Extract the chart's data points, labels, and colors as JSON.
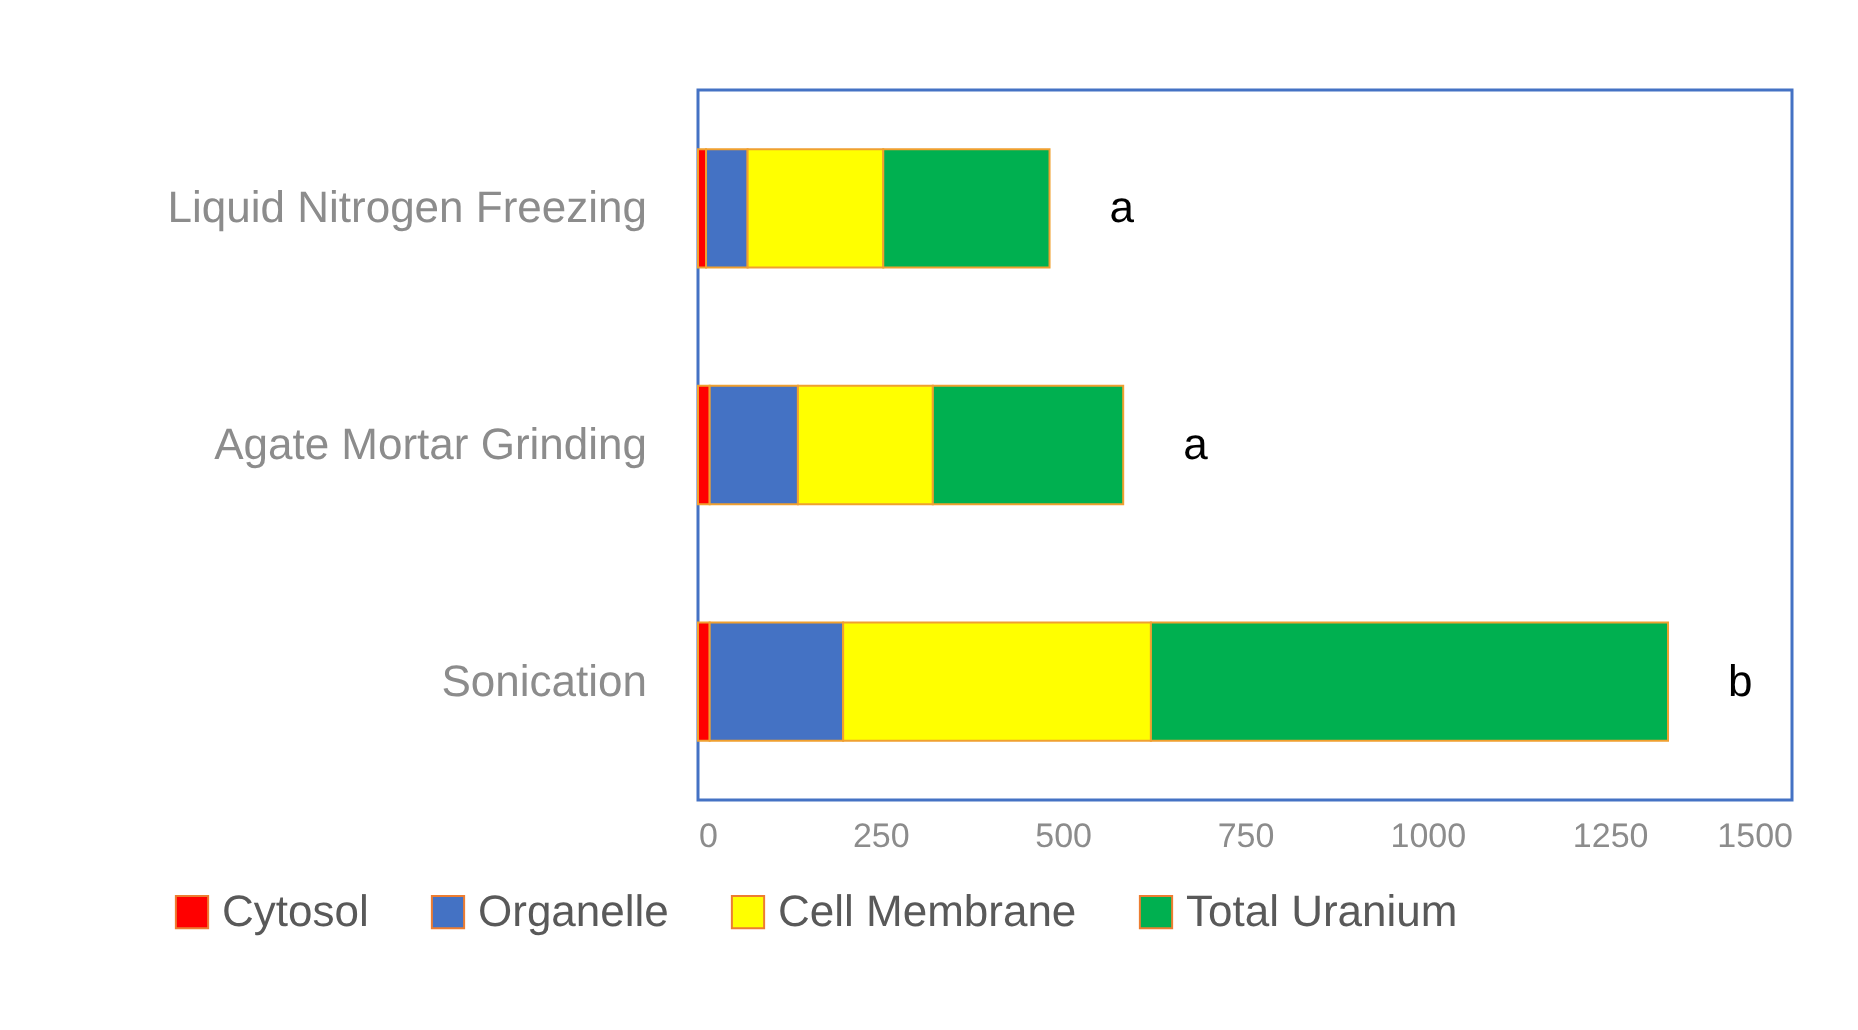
{
  "chart_data": {
    "type": "bar",
    "orientation": "horizontal",
    "stacked": true,
    "categories": [
      "Liquid Nitrogen Freezing",
      "Agate Mortar Grinding",
      "Sonication"
    ],
    "series": [
      {
        "name": "Cytosol",
        "color": "#ff0000",
        "values": [
          11,
          16,
          16
        ]
      },
      {
        "name": "Organelle",
        "color": "#4472c4",
        "values": [
          57,
          121,
          183
        ]
      },
      {
        "name": "Cell Membrane",
        "color": "#ffff00",
        "values": [
          186,
          185,
          422
        ]
      },
      {
        "name": "Total Uranium",
        "color": "#00b050",
        "values": [
          228,
          261,
          709
        ]
      }
    ],
    "xlim": [
      0,
      1500
    ],
    "xticks": [
      0,
      250,
      500,
      750,
      1000,
      1250,
      1500
    ],
    "legend": "bottom",
    "grid": false,
    "annotations": [
      {
        "text": "a",
        "x": 482,
        "y": "Liquid Nitrogen Freezing"
      },
      {
        "text": "a",
        "x": 583,
        "y": "Agate Mortar Grinding"
      },
      {
        "text": "b",
        "x": 1330,
        "y": "Sonication"
      }
    ]
  }
}
